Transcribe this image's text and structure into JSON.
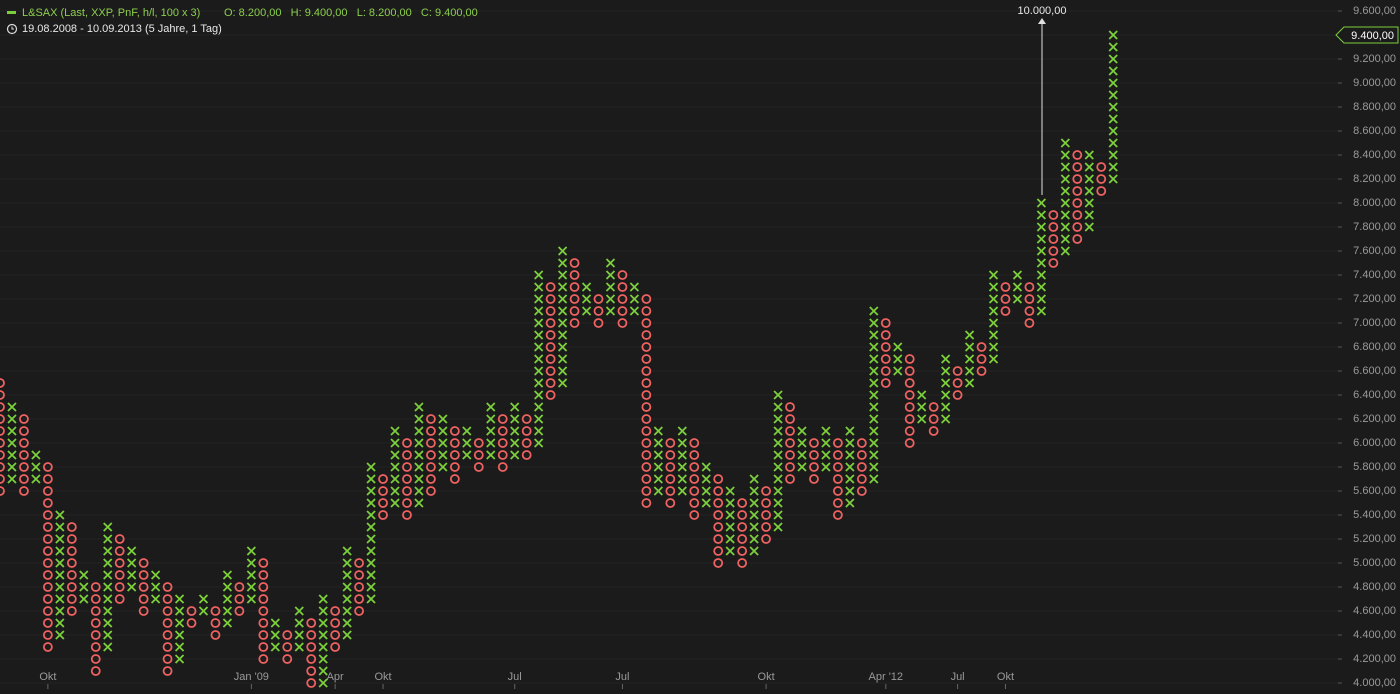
{
  "chart_data": {
    "type": "point-and-figure",
    "title": "L&SAX (Last, XXP, PnF, h/l, 100 x 3)",
    "ohlc": "O: 8.200,00   H: 9.400,00   L: 8.200,00   C: 9.400,00",
    "subtitle": "19.08.2008 - 10.09.2013 (5 Jahre, 1 Tag)",
    "annotation": "10.000,00",
    "last_value": {
      "value": 9400,
      "label": "9.400,00"
    },
    "box_size": 100,
    "x_color": "#7ccf3c",
    "o_color": "#ef6262",
    "grid": true,
    "ylim": [
      4000,
      9600
    ],
    "yticks": [
      {
        "value": 4000,
        "label": "4.000,00"
      },
      {
        "value": 4200,
        "label": "4.200,00"
      },
      {
        "value": 4400,
        "label": "4.400,00"
      },
      {
        "value": 4600,
        "label": "4.600,00"
      },
      {
        "value": 4800,
        "label": "4.800,00"
      },
      {
        "value": 5000,
        "label": "5.000,00"
      },
      {
        "value": 5200,
        "label": "5.200,00"
      },
      {
        "value": 5400,
        "label": "5.400,00"
      },
      {
        "value": 5600,
        "label": "5.600,00"
      },
      {
        "value": 5800,
        "label": "5.800,00"
      },
      {
        "value": 6000,
        "label": "6.000,00"
      },
      {
        "value": 6200,
        "label": "6.200,00"
      },
      {
        "value": 6400,
        "label": "6.400,00"
      },
      {
        "value": 6600,
        "label": "6.600,00"
      },
      {
        "value": 6800,
        "label": "6.800,00"
      },
      {
        "value": 7000,
        "label": "7.000,00"
      },
      {
        "value": 7200,
        "label": "7.200,00"
      },
      {
        "value": 7400,
        "label": "7.400,00"
      },
      {
        "value": 7600,
        "label": "7.600,00"
      },
      {
        "value": 7800,
        "label": "7.800,00"
      },
      {
        "value": 8000,
        "label": "8.000,00"
      },
      {
        "value": 8200,
        "label": "8.200,00"
      },
      {
        "value": 8400,
        "label": "8.400,00"
      },
      {
        "value": 8600,
        "label": "8.600,00"
      },
      {
        "value": 8800,
        "label": "8.800,00"
      },
      {
        "value": 9000,
        "label": "9.000,00"
      },
      {
        "value": 9200,
        "label": "9.200,00"
      },
      {
        "value": 9400,
        "label": "9.400,00"
      },
      {
        "value": 9600,
        "label": "9.600,00"
      }
    ],
    "categories": [
      null,
      null,
      null,
      null,
      "Okt",
      null,
      null,
      null,
      null,
      null,
      null,
      null,
      null,
      null,
      null,
      null,
      null,
      null,
      null,
      null,
      null,
      "Jan '09",
      null,
      null,
      null,
      null,
      null,
      null,
      "Apr",
      null,
      null,
      null,
      "Okt",
      null,
      null,
      null,
      null,
      null,
      null,
      null,
      null,
      null,
      null,
      "Jul",
      null,
      null,
      null,
      null,
      null,
      null,
      null,
      null,
      "Jul",
      null,
      null,
      null,
      null,
      null,
      null,
      null,
      null,
      null,
      null,
      null,
      "Okt",
      null,
      null,
      null,
      null,
      null,
      null,
      null,
      null,
      null,
      "Apr '12",
      null,
      null,
      null,
      null,
      null,
      "Jul",
      null,
      null,
      null,
      "Okt",
      null,
      null,
      null,
      null,
      null,
      null,
      null,
      null,
      null
    ],
    "columns": [
      {
        "kind": "O",
        "low": 5600,
        "high": 6500
      },
      {
        "kind": "X",
        "low": 5700,
        "high": 6300
      },
      {
        "kind": "O",
        "low": 5600,
        "high": 6200
      },
      {
        "kind": "X",
        "low": 5700,
        "high": 5900
      },
      {
        "kind": "O",
        "low": 4300,
        "high": 5800
      },
      {
        "kind": "X",
        "low": 4400,
        "high": 5400
      },
      {
        "kind": "O",
        "low": 4600,
        "high": 5300
      },
      {
        "kind": "X",
        "low": 4700,
        "high": 4900
      },
      {
        "kind": "O",
        "low": 4100,
        "high": 4800
      },
      {
        "kind": "X",
        "low": 4300,
        "high": 5300
      },
      {
        "kind": "O",
        "low": 4700,
        "high": 5200
      },
      {
        "kind": "X",
        "low": 4800,
        "high": 5100
      },
      {
        "kind": "O",
        "low": 4600,
        "high": 5000
      },
      {
        "kind": "X",
        "low": 4700,
        "high": 4900
      },
      {
        "kind": "O",
        "low": 4100,
        "high": 4800
      },
      {
        "kind": "X",
        "low": 4200,
        "high": 4700
      },
      {
        "kind": "O",
        "low": 4500,
        "high": 4600
      },
      {
        "kind": "X",
        "low": 4600,
        "high": 4700
      },
      {
        "kind": "O",
        "low": 4400,
        "high": 4600
      },
      {
        "kind": "X",
        "low": 4500,
        "high": 4900
      },
      {
        "kind": "O",
        "low": 4600,
        "high": 4800
      },
      {
        "kind": "X",
        "low": 4700,
        "high": 5100
      },
      {
        "kind": "O",
        "low": 4200,
        "high": 5000
      },
      {
        "kind": "X",
        "low": 4300,
        "high": 4500
      },
      {
        "kind": "O",
        "low": 4200,
        "high": 4400
      },
      {
        "kind": "X",
        "low": 4300,
        "high": 4600
      },
      {
        "kind": "O",
        "low": 4000,
        "high": 4500
      },
      {
        "kind": "X",
        "low": 4000,
        "high": 4700
      },
      {
        "kind": "O",
        "low": 4300,
        "high": 4600
      },
      {
        "kind": "X",
        "low": 4400,
        "high": 5100
      },
      {
        "kind": "O",
        "low": 4600,
        "high": 5000
      },
      {
        "kind": "X",
        "low": 4700,
        "high": 5800
      },
      {
        "kind": "O",
        "low": 5400,
        "high": 5700
      },
      {
        "kind": "X",
        "low": 5500,
        "high": 6100
      },
      {
        "kind": "O",
        "low": 5400,
        "high": 6000
      },
      {
        "kind": "X",
        "low": 5500,
        "high": 6300
      },
      {
        "kind": "O",
        "low": 5600,
        "high": 6200
      },
      {
        "kind": "X",
        "low": 5800,
        "high": 6200
      },
      {
        "kind": "O",
        "low": 5700,
        "high": 6100
      },
      {
        "kind": "X",
        "low": 5900,
        "high": 6100
      },
      {
        "kind": "O",
        "low": 5800,
        "high": 6000
      },
      {
        "kind": "X",
        "low": 5900,
        "high": 6300
      },
      {
        "kind": "O",
        "low": 5800,
        "high": 6200
      },
      {
        "kind": "X",
        "low": 5900,
        "high": 6300
      },
      {
        "kind": "O",
        "low": 5900,
        "high": 6200
      },
      {
        "kind": "X",
        "low": 6000,
        "high": 7400
      },
      {
        "kind": "O",
        "low": 6400,
        "high": 7300
      },
      {
        "kind": "X",
        "low": 6500,
        "high": 7600
      },
      {
        "kind": "O",
        "low": 7000,
        "high": 7500
      },
      {
        "kind": "X",
        "low": 7100,
        "high": 7300
      },
      {
        "kind": "O",
        "low": 7000,
        "high": 7200
      },
      {
        "kind": "X",
        "low": 7100,
        "high": 7500
      },
      {
        "kind": "O",
        "low": 7000,
        "high": 7400
      },
      {
        "kind": "X",
        "low": 7100,
        "high": 7300
      },
      {
        "kind": "O",
        "low": 5500,
        "high": 7200
      },
      {
        "kind": "X",
        "low": 5600,
        "high": 6100
      },
      {
        "kind": "O",
        "low": 5500,
        "high": 6000
      },
      {
        "kind": "X",
        "low": 5600,
        "high": 6100
      },
      {
        "kind": "O",
        "low": 5400,
        "high": 6000
      },
      {
        "kind": "X",
        "low": 5500,
        "high": 5800
      },
      {
        "kind": "O",
        "low": 5000,
        "high": 5700
      },
      {
        "kind": "X",
        "low": 5100,
        "high": 5600
      },
      {
        "kind": "O",
        "low": 5000,
        "high": 5500
      },
      {
        "kind": "X",
        "low": 5100,
        "high": 5700
      },
      {
        "kind": "O",
        "low": 5200,
        "high": 5600
      },
      {
        "kind": "X",
        "low": 5300,
        "high": 6400
      },
      {
        "kind": "O",
        "low": 5700,
        "high": 6300
      },
      {
        "kind": "X",
        "low": 5800,
        "high": 6100
      },
      {
        "kind": "O",
        "low": 5700,
        "high": 6000
      },
      {
        "kind": "X",
        "low": 5800,
        "high": 6100
      },
      {
        "kind": "O",
        "low": 5400,
        "high": 6000
      },
      {
        "kind": "X",
        "low": 5500,
        "high": 6100
      },
      {
        "kind": "O",
        "low": 5600,
        "high": 6000
      },
      {
        "kind": "X",
        "low": 5700,
        "high": 7100
      },
      {
        "kind": "O",
        "low": 6500,
        "high": 7000
      },
      {
        "kind": "X",
        "low": 6600,
        "high": 6800
      },
      {
        "kind": "O",
        "low": 6000,
        "high": 6700
      },
      {
        "kind": "X",
        "low": 6200,
        "high": 6400
      },
      {
        "kind": "O",
        "low": 6100,
        "high": 6300
      },
      {
        "kind": "X",
        "low": 6200,
        "high": 6700
      },
      {
        "kind": "O",
        "low": 6400,
        "high": 6600
      },
      {
        "kind": "X",
        "low": 6500,
        "high": 6900
      },
      {
        "kind": "O",
        "low": 6600,
        "high": 6800
      },
      {
        "kind": "X",
        "low": 6700,
        "high": 7400
      },
      {
        "kind": "O",
        "low": 7100,
        "high": 7300
      },
      {
        "kind": "X",
        "low": 7200,
        "high": 7400
      },
      {
        "kind": "O",
        "low": 7000,
        "high": 7300
      },
      {
        "kind": "X",
        "low": 7100,
        "high": 8000
      },
      {
        "kind": "O",
        "low": 7500,
        "high": 7900
      },
      {
        "kind": "X",
        "low": 7600,
        "high": 8500
      },
      {
        "kind": "O",
        "low": 7700,
        "high": 8400
      },
      {
        "kind": "X",
        "low": 7800,
        "high": 8400
      },
      {
        "kind": "O",
        "low": 8100,
        "high": 8300
      },
      {
        "kind": "X",
        "low": 8200,
        "high": 9400
      }
    ]
  }
}
